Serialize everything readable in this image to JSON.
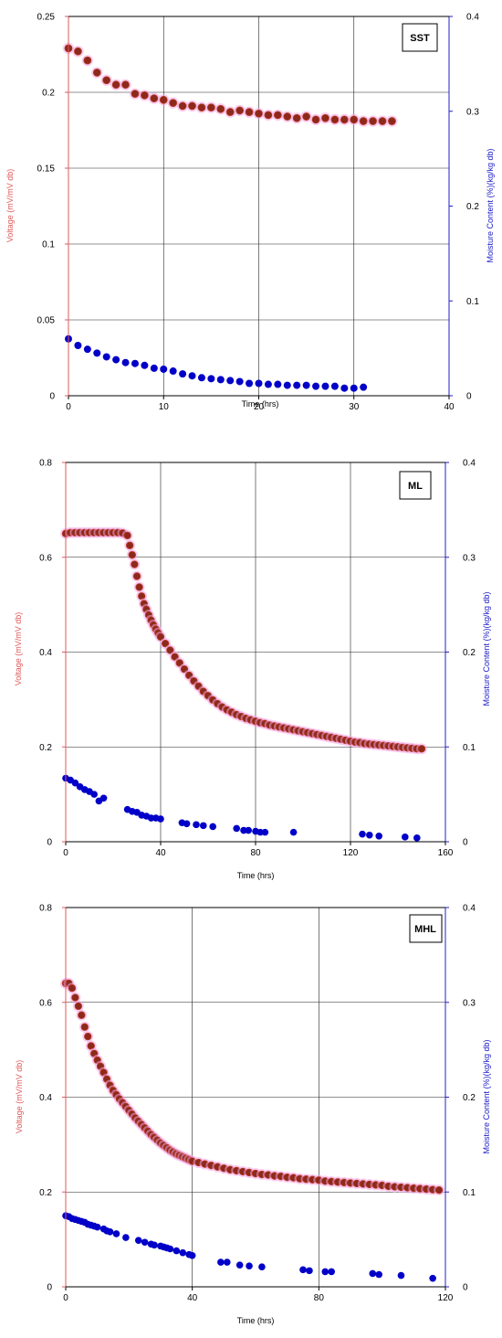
{
  "colors": {
    "voltage_axis": "#e05a5a",
    "voltage_fill": "#8b2a1a",
    "voltage_halo": "#f2a6e6",
    "moisture_axis": "#2020c8",
    "moisture_fill": "#0000c8",
    "grid": "#222222",
    "frame": "#000000"
  },
  "chart_data": [
    {
      "type": "scatter",
      "tag": "SST",
      "title": "",
      "xlabel": "Time (hrs)",
      "ylabel_left": "Voltage (mV/mV db)",
      "ylabel_right": "Moisture Content (%)(kg/kg db)",
      "xlim": [
        0,
        40
      ],
      "ylim_left": [
        0,
        0.25
      ],
      "ylim_right": [
        0,
        0.4
      ],
      "xticks": [
        "0",
        "10",
        "20",
        "30",
        "40"
      ],
      "yticks_left": [
        "0",
        "0.05",
        "0.1",
        "0.15",
        "0.2",
        "0.25"
      ],
      "yticks_right": [
        "0",
        "0.1",
        "0.2",
        "0.3",
        "0.4"
      ],
      "grid": true,
      "series": [
        {
          "axis": "left",
          "x": [
            0,
            1,
            2,
            3,
            4,
            5,
            6,
            7,
            8,
            9,
            10,
            11,
            12,
            13,
            14,
            15,
            16,
            17,
            18,
            19,
            20,
            21,
            22,
            23,
            24,
            25,
            26,
            27,
            28,
            29,
            30,
            31,
            32,
            33,
            34
          ],
          "y": [
            0.229,
            0.227,
            0.221,
            0.213,
            0.208,
            0.205,
            0.205,
            0.199,
            0.198,
            0.196,
            0.195,
            0.193,
            0.191,
            0.191,
            0.19,
            0.19,
            0.189,
            0.187,
            0.188,
            0.187,
            0.186,
            0.185,
            0.185,
            0.184,
            0.183,
            0.184,
            0.182,
            0.183,
            0.182,
            0.182,
            0.182,
            0.181,
            0.181,
            0.181,
            0.181
          ]
        },
        {
          "axis": "right",
          "x": [
            0,
            1,
            2,
            3,
            4,
            5,
            6,
            7,
            8,
            9,
            10,
            11,
            12,
            13,
            14,
            15,
            16,
            17,
            18,
            19,
            20,
            21,
            22,
            23,
            24,
            25,
            26,
            27,
            28,
            29,
            30,
            31
          ],
          "y": [
            0.06,
            0.053,
            0.049,
            0.045,
            0.041,
            0.038,
            0.035,
            0.034,
            0.032,
            0.029,
            0.028,
            0.026,
            0.023,
            0.021,
            0.019,
            0.018,
            0.017,
            0.016,
            0.015,
            0.013,
            0.013,
            0.012,
            0.012,
            0.011,
            0.011,
            0.011,
            0.01,
            0.01,
            0.01,
            0.008,
            0.008,
            0.009
          ]
        }
      ]
    },
    {
      "type": "scatter",
      "tag": "ML",
      "title": "",
      "xlabel": "Time (hrs)",
      "ylabel_left": "Voltage (mV/mV db)",
      "ylabel_right": "Moisture Content (%)(kg/kg db)",
      "xlim": [
        0,
        160
      ],
      "ylim_left": [
        0,
        0.8
      ],
      "ylim_right": [
        0,
        0.4
      ],
      "xticks": [
        "0",
        "40",
        "80",
        "120",
        "160"
      ],
      "yticks_left": [
        "0",
        "0.2",
        "0.4",
        "0.6",
        "0.8"
      ],
      "yticks_right": [
        "0",
        "0.1",
        "0.2",
        "0.3",
        "0.4"
      ],
      "grid": true,
      "series": [
        {
          "axis": "left",
          "x": [
            0,
            2,
            4,
            6,
            8,
            10,
            12,
            14,
            16,
            18,
            20,
            22,
            24,
            26,
            27,
            28,
            29,
            30,
            31,
            32,
            33,
            34,
            35,
            36,
            37,
            38,
            39,
            40,
            42,
            44,
            46,
            48,
            50,
            52,
            54,
            56,
            58,
            60,
            62,
            64,
            66,
            68,
            70,
            72,
            74,
            76,
            78,
            80,
            82,
            84,
            86,
            88,
            90,
            92,
            94,
            96,
            98,
            100,
            102,
            104,
            106,
            108,
            110,
            112,
            114,
            116,
            118,
            120,
            122,
            124,
            126,
            128,
            130,
            132,
            134,
            136,
            138,
            140,
            142,
            144,
            146,
            148,
            150
          ],
          "y": [
            0.65,
            0.652,
            0.652,
            0.652,
            0.652,
            0.652,
            0.652,
            0.652,
            0.652,
            0.652,
            0.652,
            0.652,
            0.651,
            0.646,
            0.625,
            0.605,
            0.585,
            0.56,
            0.537,
            0.518,
            0.502,
            0.49,
            0.478,
            0.467,
            0.457,
            0.448,
            0.44,
            0.432,
            0.418,
            0.404,
            0.39,
            0.377,
            0.364,
            0.351,
            0.339,
            0.328,
            0.317,
            0.308,
            0.299,
            0.291,
            0.284,
            0.278,
            0.273,
            0.268,
            0.264,
            0.26,
            0.257,
            0.254,
            0.251,
            0.249,
            0.246,
            0.244,
            0.242,
            0.24,
            0.238,
            0.236,
            0.234,
            0.232,
            0.23,
            0.228,
            0.226,
            0.224,
            0.222,
            0.22,
            0.218,
            0.216,
            0.214,
            0.212,
            0.21,
            0.209,
            0.207,
            0.206,
            0.205,
            0.204,
            0.203,
            0.202,
            0.201,
            0.2,
            0.199,
            0.198,
            0.197,
            0.196,
            0.196
          ]
        },
        {
          "axis": "right",
          "x": [
            0,
            2,
            4,
            6,
            8,
            10,
            12,
            14,
            16,
            26,
            28,
            30,
            32,
            34,
            36,
            38,
            40,
            49,
            51,
            55,
            58,
            62,
            72,
            75,
            77,
            80,
            82,
            84,
            96,
            125,
            128,
            132,
            143,
            148
          ],
          "y": [
            0.067,
            0.065,
            0.062,
            0.058,
            0.055,
            0.053,
            0.05,
            0.043,
            0.046,
            0.034,
            0.032,
            0.031,
            0.028,
            0.027,
            0.025,
            0.025,
            0.024,
            0.02,
            0.019,
            0.018,
            0.017,
            0.016,
            0.014,
            0.012,
            0.012,
            0.011,
            0.01,
            0.01,
            0.01,
            0.008,
            0.007,
            0.006,
            0.005,
            0.004
          ]
        }
      ]
    },
    {
      "type": "scatter",
      "tag": "MHL",
      "title": "",
      "xlabel": "Time (hrs)",
      "ylabel_left": "Voltage (mV/mV db)",
      "ylabel_right": "Moisture Content (%)(kg/kg db)",
      "xlim": [
        0,
        120
      ],
      "ylim_left": [
        0,
        0.8
      ],
      "ylim_right": [
        0,
        0.4
      ],
      "xticks": [
        "0",
        "40",
        "80",
        "120"
      ],
      "yticks_left": [
        "0",
        "0.2",
        "0.4",
        "0.6",
        "0.8"
      ],
      "yticks_right": [
        "0",
        "0.1",
        "0.2",
        "0.3",
        "0.4"
      ],
      "grid": true,
      "series": [
        {
          "axis": "left",
          "x": [
            0,
            1,
            2,
            3,
            4,
            5,
            6,
            7,
            8,
            9,
            10,
            11,
            12,
            13,
            14,
            15,
            16,
            17,
            18,
            19,
            20,
            21,
            22,
            23,
            24,
            25,
            26,
            27,
            28,
            29,
            30,
            31,
            32,
            33,
            34,
            35,
            36,
            37,
            38,
            39,
            40,
            42,
            44,
            46,
            48,
            50,
            52,
            54,
            56,
            58,
            60,
            62,
            64,
            66,
            68,
            70,
            72,
            74,
            76,
            78,
            80,
            82,
            84,
            86,
            88,
            90,
            92,
            94,
            96,
            98,
            100,
            102,
            104,
            106,
            108,
            110,
            112,
            114,
            116,
            118
          ],
          "y": [
            0.64,
            0.64,
            0.63,
            0.61,
            0.592,
            0.573,
            0.548,
            0.528,
            0.508,
            0.492,
            0.478,
            0.465,
            0.452,
            0.438,
            0.425,
            0.414,
            0.405,
            0.396,
            0.388,
            0.38,
            0.372,
            0.364,
            0.356,
            0.349,
            0.342,
            0.335,
            0.328,
            0.321,
            0.315,
            0.309,
            0.303,
            0.298,
            0.293,
            0.288,
            0.284,
            0.28,
            0.277,
            0.274,
            0.271,
            0.268,
            0.265,
            0.262,
            0.259,
            0.256,
            0.253,
            0.25,
            0.247,
            0.245,
            0.243,
            0.241,
            0.239,
            0.237,
            0.236,
            0.234,
            0.233,
            0.231,
            0.23,
            0.228,
            0.227,
            0.226,
            0.225,
            0.223,
            0.222,
            0.221,
            0.22,
            0.219,
            0.218,
            0.217,
            0.216,
            0.215,
            0.214,
            0.212,
            0.211,
            0.21,
            0.209,
            0.208,
            0.207,
            0.206,
            0.205,
            0.204
          ]
        },
        {
          "axis": "right",
          "x": [
            0,
            1,
            2,
            3,
            4,
            5,
            6,
            7,
            8,
            9,
            10,
            12,
            13,
            14,
            16,
            19,
            23,
            25,
            27,
            28,
            30,
            31,
            32,
            33,
            35,
            37,
            39,
            40,
            49,
            51,
            55,
            58,
            62,
            75,
            77,
            82,
            84,
            97,
            99,
            106,
            116
          ],
          "y": [
            0.075,
            0.074,
            0.072,
            0.071,
            0.07,
            0.069,
            0.068,
            0.066,
            0.065,
            0.064,
            0.063,
            0.061,
            0.059,
            0.058,
            0.056,
            0.052,
            0.049,
            0.047,
            0.045,
            0.044,
            0.043,
            0.042,
            0.041,
            0.04,
            0.038,
            0.036,
            0.034,
            0.033,
            0.026,
            0.026,
            0.023,
            0.022,
            0.021,
            0.018,
            0.017,
            0.016,
            0.016,
            0.014,
            0.013,
            0.012,
            0.009
          ]
        }
      ]
    }
  ]
}
